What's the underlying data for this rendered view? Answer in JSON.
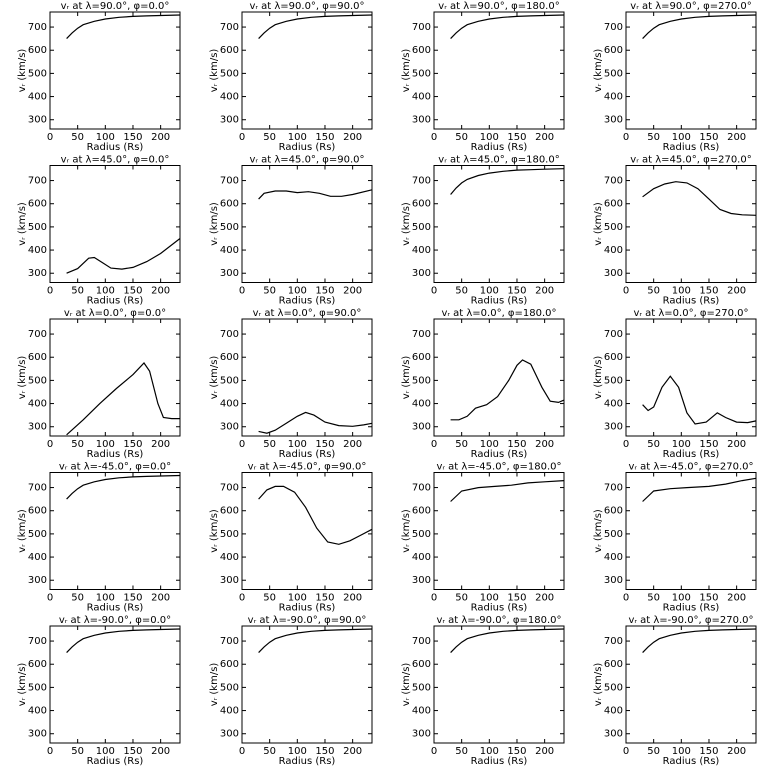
{
  "chart_data": [
    {
      "type": "line",
      "title": "vᵣ at λ=90.0°, φ=0.0°",
      "xlabel": "Radius (Rs)",
      "ylabel": "vᵣ (km/s)",
      "x": [
        30,
        40,
        50,
        60,
        80,
        100,
        125,
        150,
        175,
        200,
        235
      ],
      "values": [
        650,
        675,
        695,
        710,
        725,
        735,
        742,
        746,
        748,
        750,
        752
      ],
      "xlim": [
        0,
        235
      ],
      "ylim": [
        260,
        765
      ],
      "xticks": [
        0,
        50,
        100,
        150,
        200
      ],
      "yticks": [
        300,
        400,
        500,
        600,
        700
      ],
      "color": "#000000"
    },
    {
      "type": "line",
      "title": "vᵣ at λ=90.0°, φ=90.0°",
      "xlabel": "Radius (Rs)",
      "ylabel": "vᵣ (km/s)",
      "x": [
        30,
        40,
        50,
        60,
        80,
        100,
        125,
        150,
        175,
        200,
        235
      ],
      "values": [
        650,
        675,
        695,
        710,
        725,
        735,
        742,
        746,
        748,
        750,
        752
      ],
      "xlim": [
        0,
        235
      ],
      "ylim": [
        260,
        765
      ],
      "xticks": [
        0,
        50,
        100,
        150,
        200
      ],
      "yticks": [
        300,
        400,
        500,
        600,
        700
      ],
      "color": "#000000"
    },
    {
      "type": "line",
      "title": "vᵣ at λ=90.0°, φ=180.0°",
      "xlabel": "Radius (Rs)",
      "ylabel": "vᵣ (km/s)",
      "x": [
        30,
        40,
        50,
        60,
        80,
        100,
        125,
        150,
        175,
        200,
        235
      ],
      "values": [
        650,
        675,
        695,
        710,
        725,
        735,
        742,
        746,
        748,
        750,
        752
      ],
      "xlim": [
        0,
        235
      ],
      "ylim": [
        260,
        765
      ],
      "xticks": [
        0,
        50,
        100,
        150,
        200
      ],
      "yticks": [
        300,
        400,
        500,
        600,
        700
      ],
      "color": "#000000"
    },
    {
      "type": "line",
      "title": "vᵣ at λ=90.0°, φ=270.0°",
      "xlabel": "Radius (Rs)",
      "ylabel": "vᵣ (km/s)",
      "x": [
        30,
        40,
        50,
        60,
        80,
        100,
        125,
        150,
        175,
        200,
        235
      ],
      "values": [
        650,
        675,
        695,
        710,
        725,
        735,
        742,
        746,
        748,
        750,
        752
      ],
      "xlim": [
        0,
        235
      ],
      "ylim": [
        260,
        765
      ],
      "xticks": [
        0,
        50,
        100,
        150,
        200
      ],
      "yticks": [
        300,
        400,
        500,
        600,
        700
      ],
      "color": "#000000"
    },
    {
      "type": "line",
      "title": "vᵣ at λ=45.0°, φ=0.0°",
      "xlabel": "Radius (Rs)",
      "ylabel": "vᵣ (km/s)",
      "x": [
        30,
        50,
        70,
        80,
        95,
        110,
        130,
        150,
        175,
        200,
        235
      ],
      "values": [
        300,
        320,
        365,
        368,
        345,
        322,
        318,
        325,
        350,
        385,
        450
      ],
      "xlim": [
        0,
        235
      ],
      "ylim": [
        260,
        765
      ],
      "xticks": [
        0,
        50,
        100,
        150,
        200
      ],
      "yticks": [
        300,
        400,
        500,
        600,
        700
      ],
      "color": "#000000"
    },
    {
      "type": "line",
      "title": "vᵣ at λ=45.0°, φ=90.0°",
      "xlabel": "Radius (Rs)",
      "ylabel": "vᵣ (km/s)",
      "x": [
        30,
        40,
        60,
        80,
        100,
        120,
        140,
        160,
        180,
        200,
        235
      ],
      "values": [
        620,
        645,
        655,
        655,
        648,
        652,
        645,
        632,
        632,
        640,
        660
      ],
      "xlim": [
        0,
        235
      ],
      "ylim": [
        260,
        765
      ],
      "xticks": [
        0,
        50,
        100,
        150,
        200
      ],
      "yticks": [
        300,
        400,
        500,
        600,
        700
      ],
      "color": "#000000"
    },
    {
      "type": "line",
      "title": "vᵣ at λ=45.0°, φ=180.0°",
      "xlabel": "Radius (Rs)",
      "ylabel": "vᵣ (km/s)",
      "x": [
        30,
        40,
        50,
        60,
        80,
        100,
        125,
        150,
        175,
        200,
        235
      ],
      "values": [
        640,
        668,
        690,
        705,
        722,
        732,
        740,
        745,
        747,
        749,
        751
      ],
      "xlim": [
        0,
        235
      ],
      "ylim": [
        260,
        765
      ],
      "xticks": [
        0,
        50,
        100,
        150,
        200
      ],
      "yticks": [
        300,
        400,
        500,
        600,
        700
      ],
      "color": "#000000"
    },
    {
      "type": "line",
      "title": "vᵣ at λ=45.0°, φ=270.0°",
      "xlabel": "Radius (Rs)",
      "ylabel": "vᵣ (km/s)",
      "x": [
        30,
        50,
        70,
        90,
        110,
        130,
        150,
        170,
        190,
        210,
        235
      ],
      "values": [
        630,
        665,
        685,
        695,
        690,
        665,
        620,
        575,
        558,
        552,
        550
      ],
      "xlim": [
        0,
        235
      ],
      "ylim": [
        260,
        765
      ],
      "xticks": [
        0,
        50,
        100,
        150,
        200
      ],
      "yticks": [
        300,
        400,
        500,
        600,
        700
      ],
      "color": "#000000"
    },
    {
      "type": "line",
      "title": "vᵣ at λ=0.0°, φ=0.0°",
      "xlabel": "Radius (Rs)",
      "ylabel": "vᵣ (km/s)",
      "x": [
        30,
        60,
        90,
        120,
        150,
        170,
        180,
        195,
        205,
        220,
        235
      ],
      "values": [
        265,
        330,
        400,
        465,
        525,
        575,
        540,
        400,
        340,
        335,
        335
      ],
      "xlim": [
        0,
        235
      ],
      "ylim": [
        260,
        765
      ],
      "xticks": [
        0,
        50,
        100,
        150,
        200
      ],
      "yticks": [
        300,
        400,
        500,
        600,
        700
      ],
      "color": "#000000"
    },
    {
      "type": "line",
      "title": "vᵣ at λ=0.0°, φ=90.0°",
      "xlabel": "Radius (Rs)",
      "ylabel": "vᵣ (km/s)",
      "x": [
        30,
        45,
        60,
        80,
        100,
        115,
        130,
        150,
        175,
        200,
        220,
        235
      ],
      "values": [
        280,
        272,
        285,
        315,
        345,
        362,
        350,
        320,
        305,
        302,
        308,
        315
      ],
      "xlim": [
        0,
        235
      ],
      "ylim": [
        260,
        765
      ],
      "xticks": [
        0,
        50,
        100,
        150,
        200
      ],
      "yticks": [
        300,
        400,
        500,
        600,
        700
      ],
      "color": "#000000"
    },
    {
      "type": "line",
      "title": "vᵣ at λ=0.0°, φ=180.0°",
      "xlabel": "Radius (Rs)",
      "ylabel": "vᵣ (km/s)",
      "x": [
        30,
        45,
        60,
        75,
        95,
        115,
        135,
        150,
        160,
        175,
        195,
        210,
        225,
        235
      ],
      "values": [
        330,
        330,
        345,
        380,
        395,
        430,
        500,
        565,
        588,
        570,
        470,
        410,
        405,
        415
      ],
      "xlim": [
        0,
        235
      ],
      "ylim": [
        260,
        765
      ],
      "xticks": [
        0,
        50,
        100,
        150,
        200
      ],
      "yticks": [
        300,
        400,
        500,
        600,
        700
      ],
      "color": "#000000"
    },
    {
      "type": "line",
      "title": "vᵣ at λ=0.0°, φ=270.0°",
      "xlabel": "Radius (Rs)",
      "ylabel": "vᵣ (km/s)",
      "x": [
        30,
        40,
        50,
        65,
        80,
        95,
        110,
        125,
        145,
        165,
        180,
        200,
        220,
        235
      ],
      "values": [
        395,
        370,
        385,
        470,
        518,
        470,
        360,
        312,
        320,
        360,
        340,
        320,
        318,
        325
      ],
      "xlim": [
        0,
        235
      ],
      "ylim": [
        260,
        765
      ],
      "xticks": [
        0,
        50,
        100,
        150,
        200
      ],
      "yticks": [
        300,
        400,
        500,
        600,
        700
      ],
      "color": "#000000"
    },
    {
      "type": "line",
      "title": "vᵣ at λ=-45.0°, φ=0.0°",
      "xlabel": "Radius (Rs)",
      "ylabel": "vᵣ (km/s)",
      "x": [
        30,
        40,
        50,
        60,
        80,
        100,
        125,
        150,
        175,
        200,
        235
      ],
      "values": [
        650,
        675,
        695,
        710,
        725,
        735,
        742,
        746,
        748,
        750,
        752
      ],
      "xlim": [
        0,
        235
      ],
      "ylim": [
        260,
        765
      ],
      "xticks": [
        0,
        50,
        100,
        150,
        200
      ],
      "yticks": [
        300,
        400,
        500,
        600,
        700
      ],
      "color": "#000000"
    },
    {
      "type": "line",
      "title": "vᵣ at λ=-45.0°, φ=90.0°",
      "xlabel": "Radius (Rs)",
      "ylabel": "vᵣ (km/s)",
      "x": [
        30,
        45,
        60,
        75,
        95,
        115,
        135,
        155,
        175,
        195,
        215,
        235
      ],
      "values": [
        650,
        690,
        705,
        705,
        680,
        615,
        525,
        465,
        455,
        470,
        495,
        520
      ],
      "xlim": [
        0,
        235
      ],
      "ylim": [
        260,
        765
      ],
      "xticks": [
        0,
        50,
        100,
        150,
        200
      ],
      "yticks": [
        300,
        400,
        500,
        600,
        700
      ],
      "color": "#000000"
    },
    {
      "type": "line",
      "title": "vᵣ at λ=-45.0°, φ=180.0°",
      "xlabel": "Radius (Rs)",
      "ylabel": "vᵣ (km/s)",
      "x": [
        30,
        50,
        80,
        110,
        140,
        170,
        200,
        235
      ],
      "values": [
        640,
        685,
        700,
        705,
        710,
        720,
        725,
        730
      ],
      "xlim": [
        0,
        235
      ],
      "ylim": [
        260,
        765
      ],
      "xticks": [
        0,
        50,
        100,
        150,
        200
      ],
      "yticks": [
        300,
        400,
        500,
        600,
        700
      ],
      "color": "#000000"
    },
    {
      "type": "line",
      "title": "vᵣ at λ=-45.0°, φ=270.0°",
      "xlabel": "Radius (Rs)",
      "ylabel": "vᵣ (km/s)",
      "x": [
        30,
        50,
        80,
        110,
        150,
        180,
        210,
        235
      ],
      "values": [
        640,
        685,
        695,
        700,
        705,
        715,
        730,
        740
      ],
      "xlim": [
        0,
        235
      ],
      "ylim": [
        260,
        765
      ],
      "xticks": [
        0,
        50,
        100,
        150,
        200
      ],
      "yticks": [
        300,
        400,
        500,
        600,
        700
      ],
      "color": "#000000"
    },
    {
      "type": "line",
      "title": "vᵣ at λ=-90.0°, φ=0.0°",
      "xlabel": "Radius (Rs)",
      "ylabel": "vᵣ (km/s)",
      "x": [
        30,
        40,
        50,
        60,
        80,
        100,
        125,
        150,
        175,
        200,
        235
      ],
      "values": [
        650,
        675,
        695,
        710,
        725,
        735,
        742,
        746,
        748,
        750,
        752
      ],
      "xlim": [
        0,
        235
      ],
      "ylim": [
        260,
        765
      ],
      "xticks": [
        0,
        50,
        100,
        150,
        200
      ],
      "yticks": [
        300,
        400,
        500,
        600,
        700
      ],
      "color": "#000000"
    },
    {
      "type": "line",
      "title": "vᵣ at λ=-90.0°, φ=90.0°",
      "xlabel": "Radius (Rs)",
      "ylabel": "vᵣ (km/s)",
      "x": [
        30,
        40,
        50,
        60,
        80,
        100,
        125,
        150,
        175,
        200,
        235
      ],
      "values": [
        650,
        675,
        695,
        710,
        725,
        735,
        742,
        746,
        748,
        750,
        752
      ],
      "xlim": [
        0,
        235
      ],
      "ylim": [
        260,
        765
      ],
      "xticks": [
        0,
        50,
        100,
        150,
        200
      ],
      "yticks": [
        300,
        400,
        500,
        600,
        700
      ],
      "color": "#000000"
    },
    {
      "type": "line",
      "title": "vᵣ at λ=-90.0°, φ=180.0°",
      "xlabel": "Radius (Rs)",
      "ylabel": "vᵣ (km/s)",
      "x": [
        30,
        40,
        50,
        60,
        80,
        100,
        125,
        150,
        175,
        200,
        235
      ],
      "values": [
        650,
        675,
        695,
        710,
        725,
        735,
        742,
        746,
        748,
        750,
        752
      ],
      "xlim": [
        0,
        235
      ],
      "ylim": [
        260,
        765
      ],
      "xticks": [
        0,
        50,
        100,
        150,
        200
      ],
      "yticks": [
        300,
        400,
        500,
        600,
        700
      ],
      "color": "#000000"
    },
    {
      "type": "line",
      "title": "vᵣ at λ=-90.0°, φ=270.0°",
      "xlabel": "Radius (Rs)",
      "ylabel": "vᵣ (km/s)",
      "x": [
        30,
        40,
        50,
        60,
        80,
        100,
        125,
        150,
        175,
        200,
        235
      ],
      "values": [
        650,
        675,
        695,
        710,
        725,
        735,
        742,
        746,
        748,
        750,
        752
      ],
      "xlim": [
        0,
        235
      ],
      "ylim": [
        260,
        765
      ],
      "xticks": [
        0,
        50,
        100,
        150,
        200
      ],
      "yticks": [
        300,
        400,
        500,
        600,
        700
      ],
      "color": "#000000"
    }
  ]
}
